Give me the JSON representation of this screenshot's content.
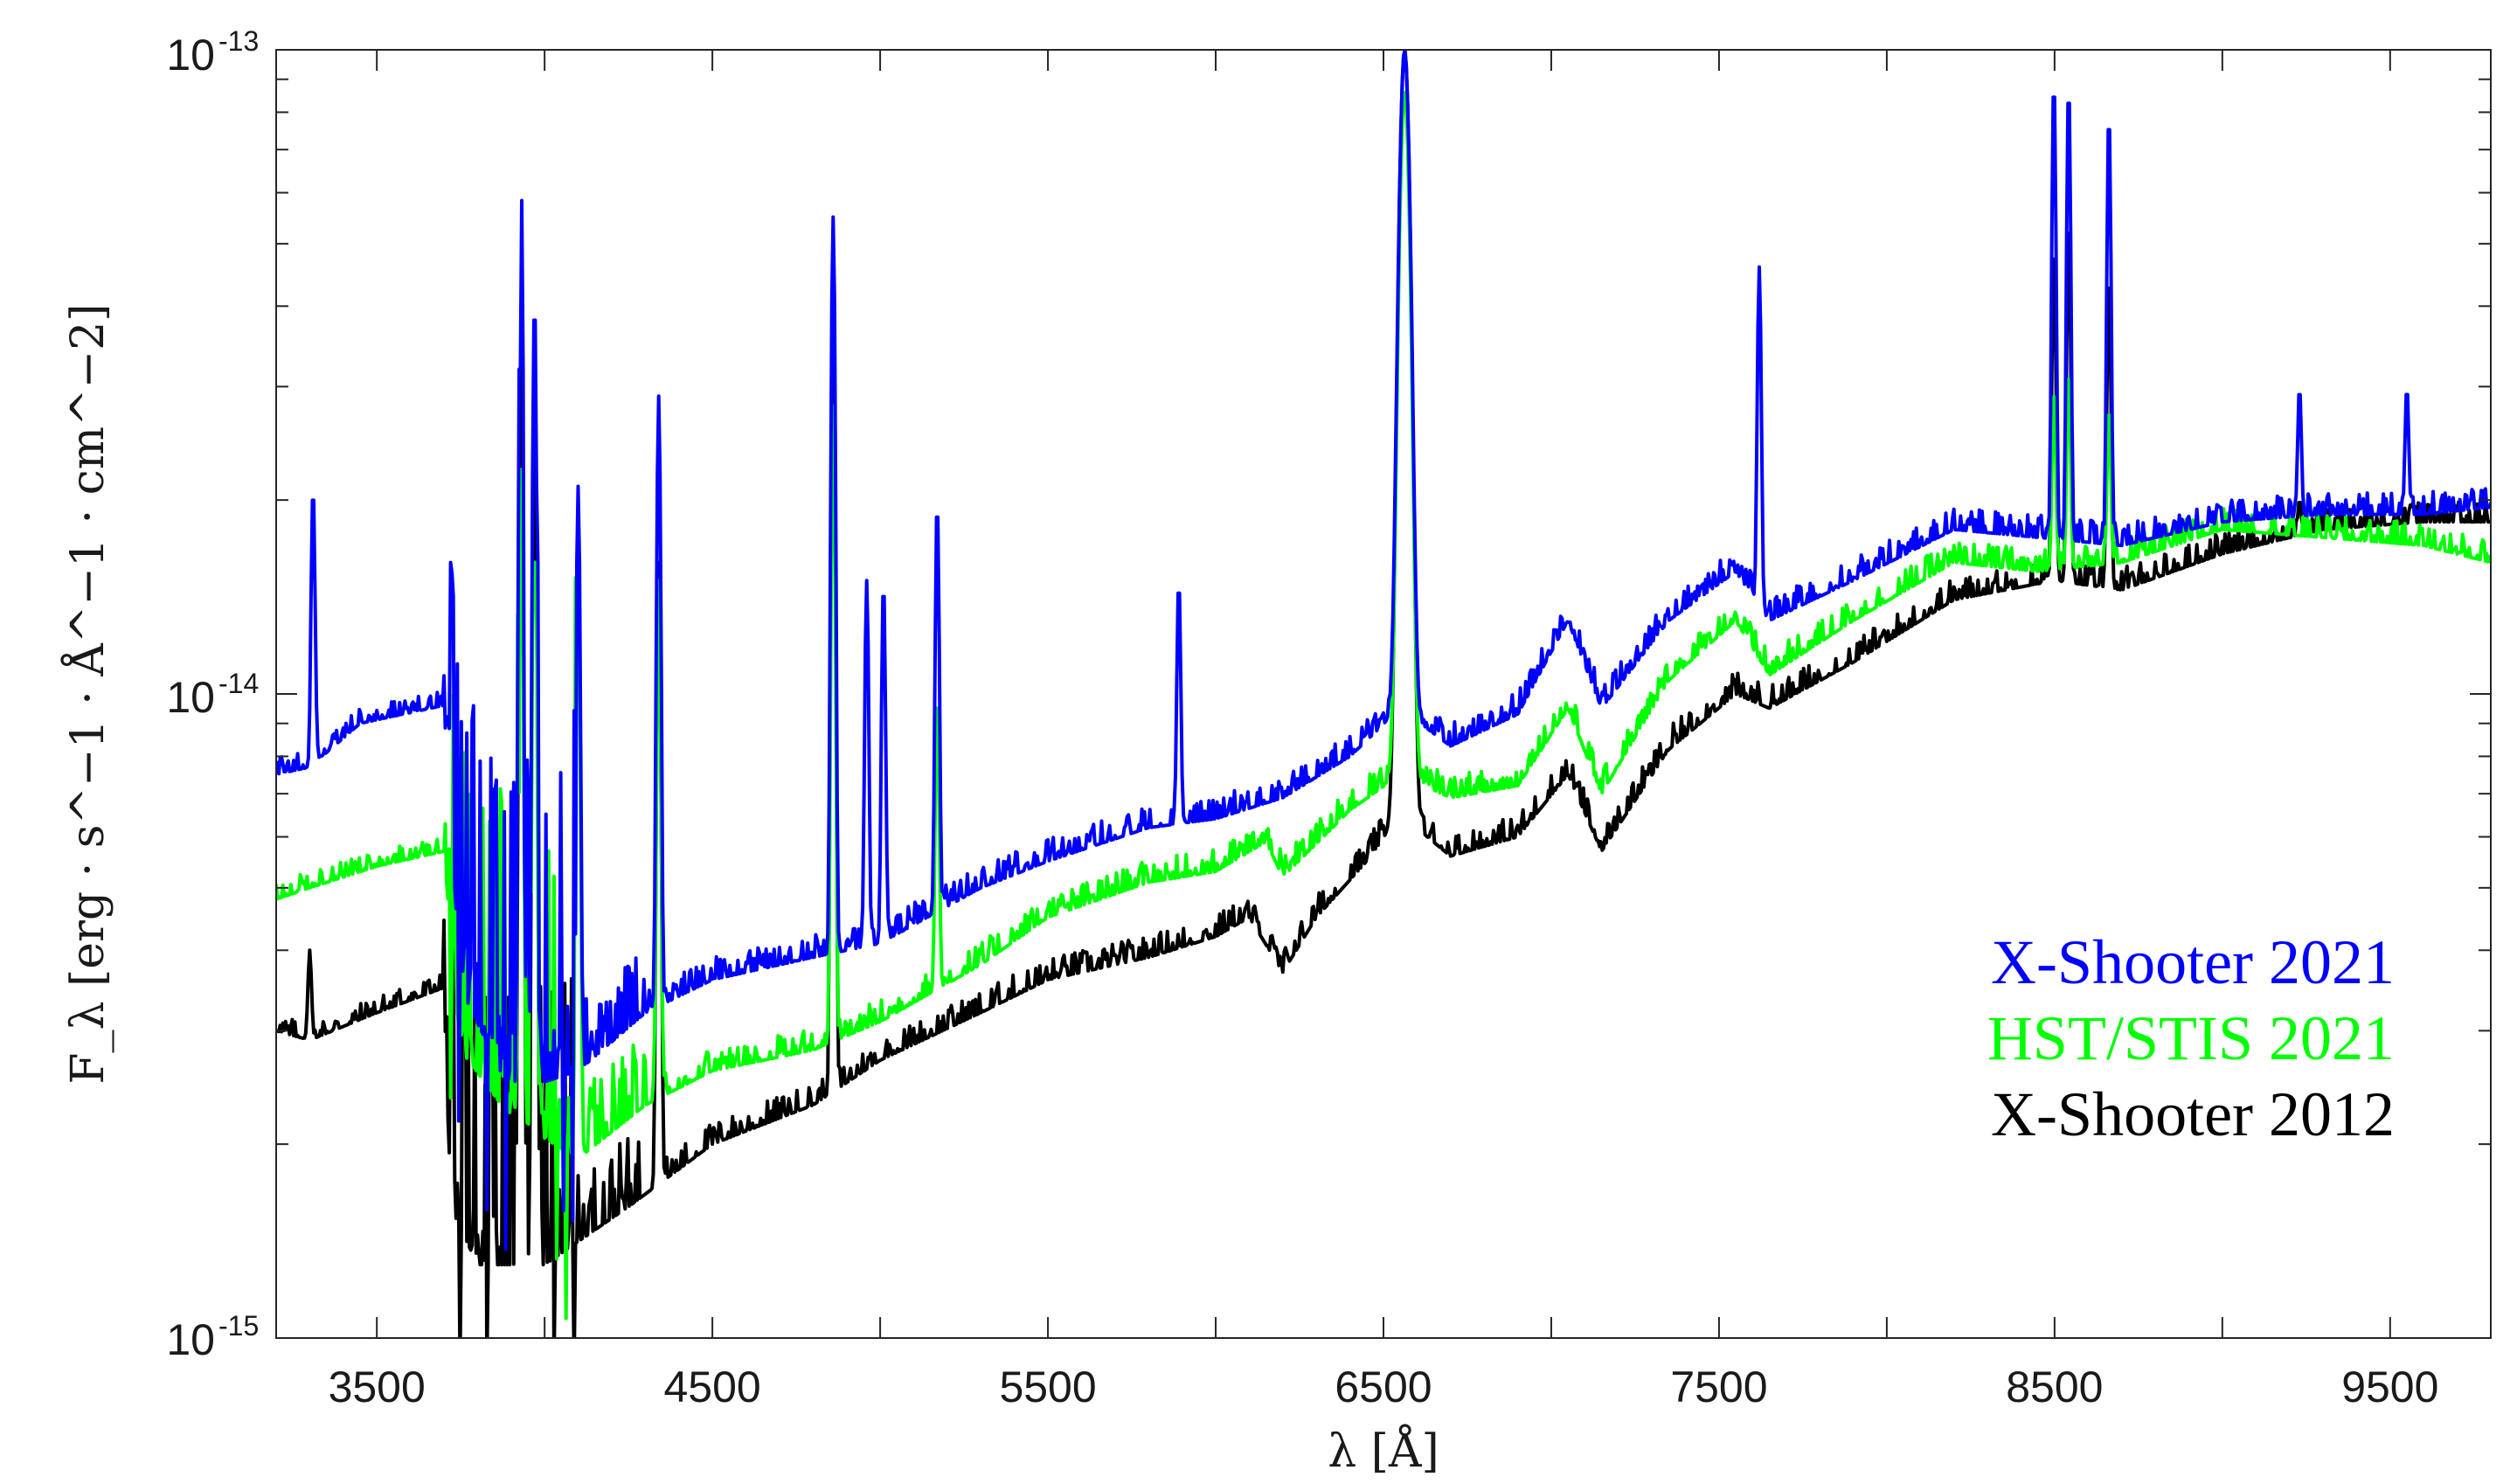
{
  "chart_data": {
    "type": "line",
    "xlabel": "λ [Å]",
    "ylabel": "F_λ [erg · s^−1 · Å^−1 · cm^−2]",
    "xlim": [
      3200,
      9800
    ],
    "ylim": [
      1e-15,
      1e-13
    ],
    "yscale": "log",
    "grid": false,
    "legend_position": "lower-right",
    "x_ticks": [
      3500,
      4500,
      5500,
      6500,
      7500,
      8500,
      9500
    ],
    "y_ticks": [
      {
        "value": 1e-15,
        "base": "10",
        "exp": "-15"
      },
      {
        "value": 1e-14,
        "base": "10",
        "exp": "-14"
      },
      {
        "value": 1e-13,
        "base": "10",
        "exp": "-13"
      }
    ],
    "series": [
      {
        "name": "X-Shooter 2012",
        "color": "#000000",
        "continuum": [
          [
            3200,
            3e-15
          ],
          [
            3300,
            2.9e-15
          ],
          [
            3500,
            3.2e-15
          ],
          [
            3700,
            3.5e-15
          ],
          [
            3720,
            1.6e-15
          ],
          [
            3800,
            1.3e-15
          ],
          [
            4000,
            1.3e-15
          ],
          [
            4250,
            1.6e-15
          ],
          [
            4500,
            2e-15
          ],
          [
            4800,
            2.3e-15
          ],
          [
            5000,
            2.7e-15
          ],
          [
            5300,
            3.2e-15
          ],
          [
            5500,
            3.6e-15
          ],
          [
            5800,
            3.9e-15
          ],
          [
            6000,
            4.2e-15
          ],
          [
            6100,
            4.5e-15
          ],
          [
            6200,
            3.7e-15
          ],
          [
            6300,
            4.5e-15
          ],
          [
            6450,
            5.5e-15
          ],
          [
            6550,
            6.5e-15
          ],
          [
            6700,
            5.6e-15
          ],
          [
            6900,
            6e-15
          ],
          [
            7050,
            7.5e-15
          ],
          [
            7150,
            5.7e-15
          ],
          [
            7350,
            8.2e-15
          ],
          [
            7550,
            1e-14
          ],
          [
            7650,
            9.5e-15
          ],
          [
            7900,
            1.12e-14
          ],
          [
            8200,
            1.4e-14
          ],
          [
            8500,
            1.5e-14
          ],
          [
            8700,
            1.45e-14
          ],
          [
            9000,
            1.65e-14
          ],
          [
            9300,
            1.8e-14
          ],
          [
            9600,
            1.85e-14
          ],
          [
            9800,
            1.85e-14
          ]
        ],
        "lines": [
          [
            3300,
            4e-15
          ],
          [
            3930,
            3.7e-14
          ],
          [
            3970,
            3.5e-14
          ],
          [
            4340,
            1.6e-14
          ],
          [
            4860,
            3.6e-14
          ],
          [
            6563,
            1e-13
          ],
          [
            8498,
            5e-14
          ],
          [
            8542,
            5.5e-14
          ],
          [
            8662,
            4.5e-14
          ],
          [
            9230,
            2e-14
          ]
        ]
      },
      {
        "name": "HST/STIS 2021",
        "color": "#00ff00",
        "continuum": [
          [
            3200,
            4.8e-15
          ],
          [
            3300,
            5e-15
          ],
          [
            3500,
            5.4e-15
          ],
          [
            3700,
            5.7e-15
          ],
          [
            3750,
            2.8e-15
          ],
          [
            3900,
            2.2e-15
          ],
          [
            4100,
            1.9e-15
          ],
          [
            4300,
            2.3e-15
          ],
          [
            4500,
            2.6e-15
          ],
          [
            4800,
            2.8e-15
          ],
          [
            5000,
            3.1e-15
          ],
          [
            5300,
            3.8e-15
          ],
          [
            5500,
            4.5e-15
          ],
          [
            5800,
            5.1e-15
          ],
          [
            6000,
            5.3e-15
          ],
          [
            6150,
            5.9e-15
          ],
          [
            6200,
            5.2e-15
          ],
          [
            6400,
            6.6e-15
          ],
          [
            6550,
            7.5e-15
          ],
          [
            6700,
            6.9e-15
          ],
          [
            6900,
            7.2e-15
          ],
          [
            7050,
            9.5e-15
          ],
          [
            7150,
            7e-15
          ],
          [
            7350,
            1.05e-14
          ],
          [
            7550,
            1.3e-14
          ],
          [
            7650,
            1.07e-14
          ],
          [
            7900,
            1.3e-14
          ],
          [
            8200,
            1.6e-14
          ],
          [
            8450,
            1.55e-14
          ],
          [
            8700,
            1.6e-14
          ],
          [
            9000,
            1.8e-14
          ],
          [
            9300,
            1.75e-14
          ],
          [
            9600,
            1.7e-14
          ],
          [
            9800,
            1.6e-14
          ]
        ],
        "lines": [
          [
            3930,
            2.4e-14
          ],
          [
            3970,
            2.3e-14
          ],
          [
            4100,
            1.6e-14
          ],
          [
            4340,
            1.5e-14
          ],
          [
            4860,
            2.8e-14
          ],
          [
            5170,
            1e-14
          ],
          [
            6563,
            8.6e-14
          ],
          [
            8498,
            3e-14
          ],
          [
            8542,
            3.2e-14
          ],
          [
            8662,
            2.8e-14
          ]
        ]
      },
      {
        "name": "X-Shooter 2021",
        "color": "#0000ff",
        "continuum": [
          [
            3200,
            7.5e-15
          ],
          [
            3300,
            7.7e-15
          ],
          [
            3450,
            9e-15
          ],
          [
            3700,
            9.6e-15
          ],
          [
            3750,
            3.5e-15
          ],
          [
            3900,
            2.4e-15
          ],
          [
            4100,
            2.6e-15
          ],
          [
            4300,
            3.2e-15
          ],
          [
            4500,
            3.6e-15
          ],
          [
            4800,
            3.9e-15
          ],
          [
            5000,
            4.1e-15
          ],
          [
            5300,
            5e-15
          ],
          [
            5500,
            5.5e-15
          ],
          [
            5800,
            6.2e-15
          ],
          [
            6000,
            6.4e-15
          ],
          [
            6200,
            6.9e-15
          ],
          [
            6400,
            8e-15
          ],
          [
            6550,
            9.5e-15
          ],
          [
            6700,
            8.3e-15
          ],
          [
            6900,
            9.3e-15
          ],
          [
            7050,
            1.3e-14
          ],
          [
            7150,
            9.5e-15
          ],
          [
            7350,
            1.3e-14
          ],
          [
            7550,
            1.55e-14
          ],
          [
            7650,
            1.3e-14
          ],
          [
            7900,
            1.5e-14
          ],
          [
            8200,
            1.8e-14
          ],
          [
            8450,
            1.75e-14
          ],
          [
            8700,
            1.7e-14
          ],
          [
            9000,
            1.85e-14
          ],
          [
            9300,
            1.9e-14
          ],
          [
            9600,
            1.9e-14
          ],
          [
            9800,
            1.95e-14
          ]
        ],
        "lines": [
          [
            3310,
            2.1e-14
          ],
          [
            3930,
            6.3e-14
          ],
          [
            3970,
            4.1e-14
          ],
          [
            4100,
            2.1e-14
          ],
          [
            4340,
            2.9e-14
          ],
          [
            4860,
            5.5e-14
          ],
          [
            4960,
            1.5e-14
          ],
          [
            5010,
            1.5e-14
          ],
          [
            5170,
            2e-14
          ],
          [
            5890,
            1.5e-14
          ],
          [
            6563,
            1e-13
          ],
          [
            7620,
            4.6e-14
          ],
          [
            8498,
            9e-14
          ],
          [
            8542,
            8.8e-14
          ],
          [
            8662,
            8e-14
          ],
          [
            9230,
            3e-14
          ],
          [
            9550,
            3e-14
          ]
        ]
      }
    ]
  },
  "legend": [
    {
      "label": "X-Shooter 2021",
      "color": "#0000ff"
    },
    {
      "label": "HST/STIS 2021",
      "color": "#00ff00"
    },
    {
      "label": "X-Shooter 2012",
      "color": "#000000"
    }
  ]
}
